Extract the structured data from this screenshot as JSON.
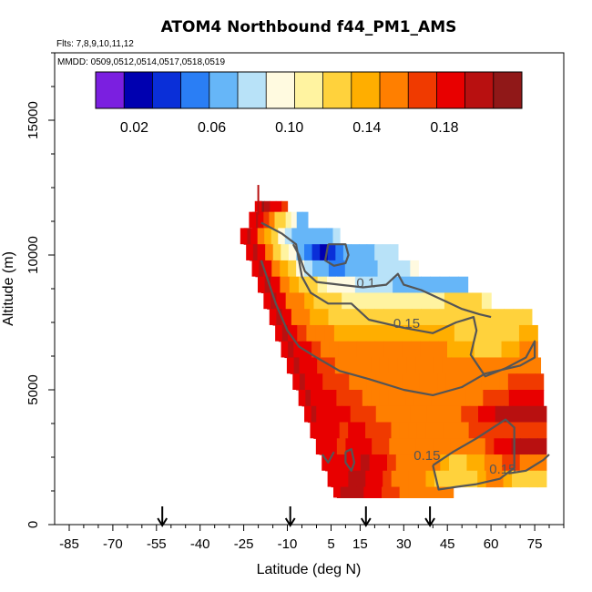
{
  "chart_data": {
    "type": "heatmap",
    "title": "ATOM4 Northbound f44_PM1_AMS",
    "subtitle_flights": "Flts: 7,8,9,10,11,12",
    "subtitle_dates": "MMDD: 0509,0512,0514,0517,0518,0519",
    "xlabel": "Latitude (deg N)",
    "ylabel": "Altitude (m)",
    "xlim": [
      -90,
      85
    ],
    "ylim": [
      0,
      17500
    ],
    "x_ticks": [
      -85,
      -70,
      -55,
      -40,
      -25,
      -10,
      5,
      15,
      30,
      45,
      60,
      75
    ],
    "x_tick_labels": [
      "-85",
      "-70",
      "-55",
      "-40",
      "-25",
      "-10",
      "5",
      "15",
      "30",
      "45",
      "60",
      "75"
    ],
    "y_ticks": [
      0,
      5000,
      10000,
      15000
    ],
    "y_tick_labels": [
      "0",
      "5000",
      "10000",
      "15000"
    ],
    "colorbar": {
      "range": [
        0.0,
        0.22
      ],
      "ticks": [
        0.02,
        0.06,
        0.1,
        0.14,
        0.18
      ],
      "tick_labels": [
        "0.02",
        "0.06",
        "0.10",
        "0.14",
        "0.18"
      ],
      "colors": [
        "#7b1fe0",
        "#0000b0",
        "#0a2fd8",
        "#2a7ef5",
        "#66b6f8",
        "#b8e2f8",
        "#fffae0",
        "#fff3a0",
        "#ffd23c",
        "#ffae00",
        "#ff7f00",
        "#f03a00",
        "#e80000",
        "#b81010",
        "#901818"
      ]
    },
    "arrows_latitude": [
      -53,
      -9,
      17,
      39
    ],
    "contour_labels": [
      {
        "text": "0.1",
        "lat": 17,
        "alt": 8800
      },
      {
        "text": "0.15",
        "lat": 31,
        "alt": 7300
      },
      {
        "text": "0.15",
        "lat": 38,
        "alt": 2400
      },
      {
        "text": "0.15",
        "lat": 64,
        "alt": 1900
      }
    ],
    "profiles": [
      {
        "lat": -20,
        "bottom": 11600,
        "top": 12000
      },
      {
        "lat": -22,
        "bottom": 11000,
        "top": 11600
      },
      {
        "lat": -25,
        "bottom": 10400,
        "top": 11000
      },
      {
        "lat": -23,
        "bottom": 9800,
        "top": 10400
      },
      {
        "lat": -21,
        "bottom": 9200,
        "top": 9800
      },
      {
        "lat": -19,
        "bottom": 8600,
        "top": 9200
      },
      {
        "lat": -17,
        "bottom": 8000,
        "top": 8600
      },
      {
        "lat": -15,
        "bottom": 7400,
        "top": 8000
      },
      {
        "lat": -13,
        "bottom": 6800,
        "top": 7400
      },
      {
        "lat": -11,
        "bottom": 6200,
        "top": 6800
      },
      {
        "lat": -9,
        "bottom": 5600,
        "top": 6200
      },
      {
        "lat": -7,
        "bottom": 5000,
        "top": 5600
      },
      {
        "lat": -5,
        "bottom": 4400,
        "top": 5000
      },
      {
        "lat": -3,
        "bottom": 3800,
        "top": 4400
      },
      {
        "lat": -1,
        "bottom": 3200,
        "top": 3800
      },
      {
        "lat": 1,
        "bottom": 2600,
        "top": 3200
      },
      {
        "lat": 3,
        "bottom": 2000,
        "top": 2600
      },
      {
        "lat": 5,
        "bottom": 1400,
        "top": 2000
      },
      {
        "lat": 7,
        "bottom": 1000,
        "top": 1400
      }
    ],
    "rows": [
      {
        "alt_bottom": 11600,
        "alt_top": 12000,
        "lat_start": -20,
        "lat_end": -10,
        "values": [
          0.21,
          0.2,
          0.19,
          0.18,
          0.17
        ]
      },
      {
        "alt_bottom": 11000,
        "alt_top": 11600,
        "lat_start": -22,
        "lat_end": -3,
        "values": [
          0.2,
          0.19,
          0.17,
          0.15,
          0.13,
          0.12,
          0.11,
          0.09,
          0.07,
          0.06
        ]
      },
      {
        "alt_bottom": 10400,
        "alt_top": 11000,
        "lat_start": -25,
        "lat_end": 8,
        "values": [
          0.2,
          0.18,
          0.16,
          0.14,
          0.12,
          0.1,
          0.08,
          0.07,
          0.06,
          0.06,
          0.06,
          0.07,
          0.07,
          0.08
        ]
      },
      {
        "alt_bottom": 9800,
        "alt_top": 10400,
        "lat_start": -23,
        "lat_end": 28,
        "values": [
          0.2,
          0.18,
          0.15,
          0.13,
          0.11,
          0.09,
          0.07,
          0.05,
          0.03,
          0.02,
          0.03,
          0.05,
          0.06,
          0.06,
          0.07,
          0.07,
          0.08,
          0.08,
          0.08
        ]
      },
      {
        "alt_bottom": 9200,
        "alt_top": 9800,
        "lat_start": -21,
        "lat_end": 35,
        "values": [
          0.2,
          0.18,
          0.16,
          0.14,
          0.12,
          0.1,
          0.08,
          0.07,
          0.06,
          0.05,
          0.05,
          0.06,
          0.06,
          0.07,
          0.07,
          0.08,
          0.08,
          0.08,
          0.08,
          0.09
        ]
      },
      {
        "alt_bottom": 8600,
        "alt_top": 9200,
        "lat_start": -19,
        "lat_end": 52,
        "values": [
          0.2,
          0.18,
          0.16,
          0.14,
          0.13,
          0.12,
          0.11,
          0.1,
          0.09,
          0.09,
          0.08,
          0.08,
          0.08,
          0.08,
          0.07,
          0.07,
          0.07,
          0.07,
          0.07,
          0.07,
          0.07,
          0.07
        ]
      },
      {
        "alt_bottom": 8000,
        "alt_top": 8600,
        "lat_start": -17,
        "lat_end": 60,
        "values": [
          0.2,
          0.18,
          0.16,
          0.15,
          0.14,
          0.13,
          0.12,
          0.12,
          0.11,
          0.11,
          0.11,
          0.11,
          0.11,
          0.11,
          0.11,
          0.11,
          0.11,
          0.11,
          0.11,
          0.12,
          0.12,
          0.12,
          0.12,
          0.11
        ]
      },
      {
        "alt_bottom": 7400,
        "alt_top": 8000,
        "lat_start": -15,
        "lat_end": 74,
        "values": [
          0.2,
          0.18,
          0.16,
          0.15,
          0.14,
          0.14,
          0.13,
          0.13,
          0.13,
          0.13,
          0.13,
          0.13,
          0.13,
          0.13,
          0.13,
          0.13,
          0.13,
          0.13,
          0.13,
          0.13,
          0.13,
          0.13,
          0.13,
          0.12,
          0.12,
          0.12,
          0.12,
          0.12
        ]
      },
      {
        "alt_bottom": 6800,
        "alt_top": 7400,
        "lat_start": -13,
        "lat_end": 76,
        "values": [
          0.2,
          0.18,
          0.17,
          0.16,
          0.15,
          0.15,
          0.14,
          0.14,
          0.14,
          0.14,
          0.14,
          0.14,
          0.14,
          0.14,
          0.14,
          0.14,
          0.14,
          0.14,
          0.14,
          0.13,
          0.13,
          0.13,
          0.13,
          0.13,
          0.13,
          0.13,
          0.14,
          0.14
        ]
      },
      {
        "alt_bottom": 6200,
        "alt_top": 6800,
        "lat_start": -11,
        "lat_end": 76,
        "values": [
          0.2,
          0.19,
          0.18,
          0.17,
          0.16,
          0.16,
          0.15,
          0.15,
          0.15,
          0.15,
          0.15,
          0.15,
          0.15,
          0.15,
          0.15,
          0.15,
          0.15,
          0.15,
          0.14,
          0.14,
          0.14,
          0.13,
          0.13,
          0.13,
          0.14,
          0.14,
          0.15,
          0.15
        ]
      },
      {
        "alt_bottom": 5600,
        "alt_top": 6200,
        "lat_start": -9,
        "lat_end": 77,
        "values": [
          0.2,
          0.19,
          0.18,
          0.17,
          0.17,
          0.16,
          0.16,
          0.16,
          0.16,
          0.16,
          0.16,
          0.16,
          0.16,
          0.16,
          0.16,
          0.16,
          0.16,
          0.16,
          0.16,
          0.16,
          0.16,
          0.16,
          0.16,
          0.16,
          0.16,
          0.16,
          0.16,
          0.16
        ]
      },
      {
        "alt_bottom": 5000,
        "alt_top": 5600,
        "lat_start": -7,
        "lat_end": 78,
        "values": [
          0.2,
          0.19,
          0.18,
          0.17,
          0.17,
          0.17,
          0.16,
          0.16,
          0.16,
          0.16,
          0.16,
          0.16,
          0.16,
          0.16,
          0.16,
          0.16,
          0.16,
          0.16,
          0.16,
          0.16,
          0.16,
          0.16,
          0.16,
          0.16,
          0.17,
          0.17,
          0.17,
          0.17
        ]
      },
      {
        "alt_bottom": 4400,
        "alt_top": 5000,
        "lat_start": -5,
        "lat_end": 78,
        "values": [
          0.2,
          0.19,
          0.18,
          0.18,
          0.17,
          0.17,
          0.17,
          0.16,
          0.16,
          0.16,
          0.16,
          0.16,
          0.16,
          0.16,
          0.16,
          0.16,
          0.16,
          0.16,
          0.16,
          0.16,
          0.16,
          0.17,
          0.17,
          0.17,
          0.18,
          0.18,
          0.18,
          0.18
        ]
      },
      {
        "alt_bottom": 3800,
        "alt_top": 4400,
        "lat_start": -3,
        "lat_end": 79,
        "values": [
          0.2,
          0.19,
          0.19,
          0.18,
          0.18,
          0.17,
          0.17,
          0.17,
          0.16,
          0.16,
          0.16,
          0.16,
          0.16,
          0.16,
          0.16,
          0.16,
          0.16,
          0.16,
          0.17,
          0.17,
          0.18,
          0.19,
          0.2,
          0.2,
          0.2,
          0.2,
          0.2,
          0.2
        ]
      },
      {
        "alt_bottom": 3200,
        "alt_top": 3800,
        "lat_start": -1,
        "lat_end": 79,
        "values": [
          0.19,
          0.18,
          0.18,
          0.17,
          0.18,
          0.18,
          0.17,
          0.17,
          0.17,
          0.16,
          0.16,
          0.16,
          0.16,
          0.16,
          0.16,
          0.16,
          0.16,
          0.16,
          0.17,
          0.17,
          0.17,
          0.17,
          0.17,
          0.17,
          0.17,
          0.17,
          0.17
        ]
      },
      {
        "alt_bottom": 2600,
        "alt_top": 3200,
        "lat_start": 1,
        "lat_end": 79,
        "values": [
          0.19,
          0.18,
          0.17,
          0.18,
          0.19,
          0.18,
          0.17,
          0.17,
          0.16,
          0.16,
          0.16,
          0.16,
          0.16,
          0.16,
          0.15,
          0.15,
          0.15,
          0.15,
          0.16,
          0.17,
          0.18,
          0.19,
          0.2,
          0.2,
          0.2,
          0.2
        ]
      },
      {
        "alt_bottom": 2000,
        "alt_top": 2600,
        "lat_start": 3,
        "lat_end": 79,
        "values": [
          0.19,
          0.18,
          0.18,
          0.19,
          0.2,
          0.19,
          0.18,
          0.17,
          0.16,
          0.16,
          0.16,
          0.16,
          0.15,
          0.14,
          0.13,
          0.13,
          0.14,
          0.14,
          0.15,
          0.16,
          0.17,
          0.17,
          0.16,
          0.15,
          0.15
        ]
      },
      {
        "alt_bottom": 1400,
        "alt_top": 2000,
        "lat_start": 5,
        "lat_end": 79,
        "values": [
          0.19,
          0.19,
          0.2,
          0.2,
          0.19,
          0.18,
          0.17,
          0.16,
          0.16,
          0.16,
          0.15,
          0.14,
          0.13,
          0.13,
          0.13,
          0.13,
          0.13,
          0.14,
          0.15,
          0.15,
          0.14,
          0.13,
          0.13,
          0.13,
          0.13
        ]
      },
      {
        "alt_bottom": 1000,
        "alt_top": 1400,
        "lat_start": 7,
        "lat_end": 47,
        "values": [
          0.2,
          0.2,
          0.2,
          0.19,
          0.18,
          0.17,
          0.17,
          0.16,
          0.16,
          0.16,
          0.16,
          0.16,
          0.16
        ]
      }
    ],
    "contours": [
      {
        "level": 0.15,
        "points": [
          [
            -19,
            11200
          ],
          [
            -12,
            10800
          ],
          [
            -7,
            10400
          ],
          [
            -5,
            9200
          ],
          [
            -2,
            8600
          ],
          [
            4,
            8200
          ],
          [
            12,
            8200
          ],
          [
            18,
            7600
          ],
          [
            30,
            7300
          ],
          [
            40,
            7100
          ],
          [
            48,
            7500
          ],
          [
            54,
            7700
          ],
          [
            55,
            7200
          ],
          [
            53,
            6300
          ],
          [
            58,
            5500
          ],
          [
            65,
            5800
          ],
          [
            72,
            6200
          ],
          [
            75,
            6800
          ],
          [
            75,
            6200
          ],
          [
            70,
            5900
          ],
          [
            58,
            5600
          ],
          [
            50,
            5100
          ],
          [
            40,
            4800
          ],
          [
            30,
            5000
          ],
          [
            18,
            5400
          ],
          [
            8,
            5700
          ],
          [
            0,
            6200
          ],
          [
            -6,
            6600
          ],
          [
            -10,
            7200
          ],
          [
            -14,
            8200
          ],
          [
            -19,
            9800
          ]
        ]
      },
      {
        "level": 0.1,
        "points": [
          [
            -8,
            10400
          ],
          [
            -6,
            10000
          ],
          [
            -4,
            9400
          ],
          [
            0,
            9000
          ],
          [
            8,
            8900
          ],
          [
            16,
            8800
          ],
          [
            24,
            8900
          ],
          [
            28,
            9300
          ],
          [
            30,
            8900
          ],
          [
            36,
            8700
          ],
          [
            44,
            8300
          ],
          [
            50,
            8000
          ],
          [
            56,
            7800
          ],
          [
            60,
            7700
          ]
        ]
      },
      {
        "level": 0.05,
        "points": [
          [
            4,
            10400
          ],
          [
            10,
            10400
          ],
          [
            11,
            10000
          ],
          [
            10,
            9700
          ],
          [
            6,
            9600
          ],
          [
            3,
            9800
          ],
          [
            4,
            10400
          ]
        ]
      },
      {
        "level": 0.15,
        "points": [
          [
            40,
            2200
          ],
          [
            47,
            2700
          ],
          [
            55,
            3200
          ],
          [
            65,
            3900
          ],
          [
            68,
            3600
          ],
          [
            68,
            2100
          ],
          [
            63,
            1700
          ],
          [
            55,
            1500
          ],
          [
            48,
            1400
          ],
          [
            42,
            1300
          ],
          [
            40,
            2200
          ]
        ]
      },
      {
        "level": 0.15,
        "points": [
          [
            66,
            1900
          ],
          [
            72,
            2000
          ],
          [
            78,
            2400
          ],
          [
            80,
            2600
          ]
        ]
      },
      {
        "level": 0.2,
        "points": [
          [
            10,
            2700
          ],
          [
            12,
            2800
          ],
          [
            13,
            2300
          ],
          [
            12,
            2000
          ],
          [
            10,
            2300
          ],
          [
            10,
            2700
          ]
        ]
      },
      {
        "level": 0.2,
        "points": [
          [
            2,
            2600
          ],
          [
            4,
            2300
          ],
          [
            6,
            2700
          ]
        ]
      }
    ]
  }
}
